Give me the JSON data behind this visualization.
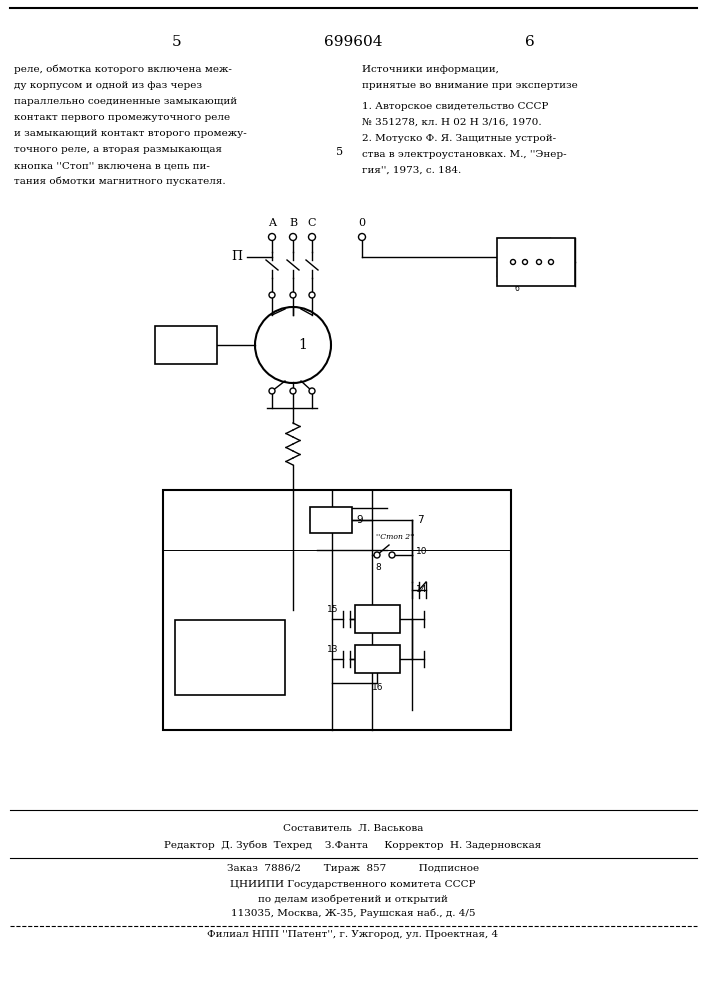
{
  "page_number_left": "5",
  "page_number_center": "699604",
  "page_number_right": "6",
  "left_column_text": [
    "реле, обмотка которого включена меж-",
    "ду корпусом и одной из фаз через",
    "параллельно соединенные замыкающий",
    "контакт первого промежуточного реле",
    "и замыкающий контакт второго промежу-",
    "точного реле, а вторая размыкающая",
    "кнопка ''Стоп'' включена в цепь пи-",
    "тания обмотки магнитного пускателя."
  ],
  "right_column_title": "Источники информации,",
  "right_column_subtitle": "принятые во внимание при экспертизе",
  "right_column_text": [
    "1. Авторское свидетельство СССР",
    "№ 351278, кл. H 02 H 3/16, 1970.",
    "2. Мотуско Ф. Я. Защитные устрой-",
    "ства в электроустановках. М., ''Энер-",
    "гия'', 1973, с. 184."
  ],
  "line5_label": "5",
  "footer_composer": "Составитель  Л. Васькова",
  "footer_editor": "Редактор  Д. Зубов  Техред    З.Фанта     Корректор  Н. Задерновская",
  "footer_order": "Заказ  7886/2       Тираж  857          Подписное",
  "footer_org": "ЦНИИПИ Государственного комитета СССР",
  "footer_dept": "по делам изобретений и открытий",
  "footer_address": "113035, Москва, Ж-35, Раушская наб., д. 4/5",
  "footer_branch": "Филиал НПП ''Патент'', г. Ужгород, ул. Проектная, 4",
  "bg_color": "#ffffff",
  "text_color": "#000000",
  "line_color": "#000000"
}
